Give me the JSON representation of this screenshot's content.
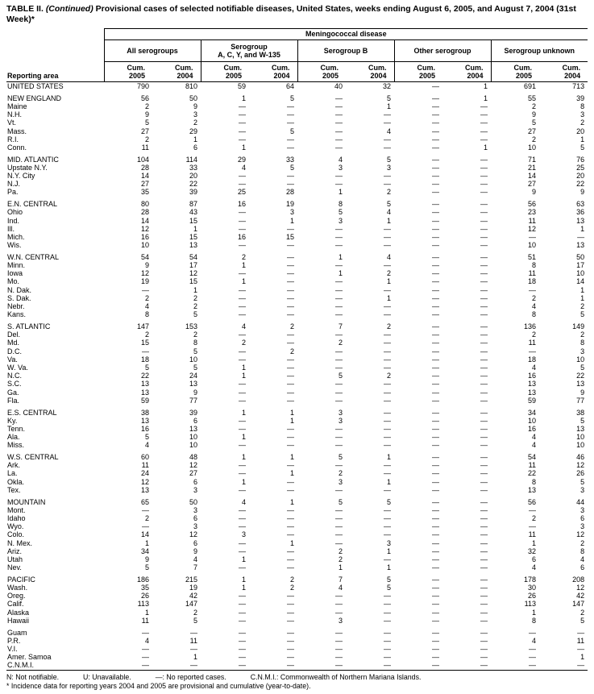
{
  "page": {
    "title_prefix": "TABLE II.",
    "title_continued": "(Continued)",
    "title_rest": "Provisional cases of selected notifiable diseases, United States, weeks ending August 6, 2005, and August 7, 2004 (31st Week)*"
  },
  "table": {
    "disease_header": "Meningococcal disease",
    "reporting_area_header": "Reporting area",
    "group_headers": [
      [
        "All serogroups"
      ],
      [
        "Serogroup",
        "A, C, Y, and W-135"
      ],
      [
        "Serogroup B"
      ],
      [
        "Other serogroup"
      ],
      [
        "Serogroup unknown"
      ]
    ],
    "cum_label": "Cum.",
    "years": [
      "2005",
      "2004"
    ],
    "body_groups": [
      {
        "rows": [
          [
            "UNITED STATES",
            "790",
            "810",
            "59",
            "64",
            "40",
            "32",
            "—",
            "1",
            "691",
            "713"
          ]
        ]
      },
      {
        "rows": [
          [
            "NEW ENGLAND",
            "56",
            "50",
            "1",
            "5",
            "—",
            "5",
            "—",
            "1",
            "55",
            "39"
          ],
          [
            "Maine",
            "2",
            "9",
            "—",
            "—",
            "—",
            "1",
            "—",
            "—",
            "2",
            "8"
          ],
          [
            "N.H.",
            "9",
            "3",
            "—",
            "—",
            "—",
            "—",
            "—",
            "—",
            "9",
            "3"
          ],
          [
            "Vt.",
            "5",
            "2",
            "—",
            "—",
            "—",
            "—",
            "—",
            "—",
            "5",
            "2"
          ],
          [
            "Mass.",
            "27",
            "29",
            "—",
            "5",
            "—",
            "4",
            "—",
            "—",
            "27",
            "20"
          ],
          [
            "R.I.",
            "2",
            "1",
            "—",
            "—",
            "—",
            "—",
            "—",
            "—",
            "2",
            "1"
          ],
          [
            "Conn.",
            "11",
            "6",
            "1",
            "—",
            "—",
            "—",
            "—",
            "1",
            "10",
            "5"
          ]
        ]
      },
      {
        "rows": [
          [
            "MID. ATLANTIC",
            "104",
            "114",
            "29",
            "33",
            "4",
            "5",
            "—",
            "—",
            "71",
            "76"
          ],
          [
            "Upstate N.Y.",
            "28",
            "33",
            "4",
            "5",
            "3",
            "3",
            "—",
            "—",
            "21",
            "25"
          ],
          [
            "N.Y. City",
            "14",
            "20",
            "—",
            "—",
            "—",
            "—",
            "—",
            "—",
            "14",
            "20"
          ],
          [
            "N.J.",
            "27",
            "22",
            "—",
            "—",
            "—",
            "—",
            "—",
            "—",
            "27",
            "22"
          ],
          [
            "Pa.",
            "35",
            "39",
            "25",
            "28",
            "1",
            "2",
            "—",
            "—",
            "9",
            "9"
          ]
        ]
      },
      {
        "rows": [
          [
            "E.N. CENTRAL",
            "80",
            "87",
            "16",
            "19",
            "8",
            "5",
            "—",
            "—",
            "56",
            "63"
          ],
          [
            "Ohio",
            "28",
            "43",
            "—",
            "3",
            "5",
            "4",
            "—",
            "—",
            "23",
            "36"
          ],
          [
            "Ind.",
            "14",
            "15",
            "—",
            "1",
            "3",
            "1",
            "—",
            "—",
            "11",
            "13"
          ],
          [
            "Ill.",
            "12",
            "1",
            "—",
            "—",
            "—",
            "—",
            "—",
            "—",
            "12",
            "1"
          ],
          [
            "Mich.",
            "16",
            "15",
            "16",
            "15",
            "—",
            "—",
            "—",
            "—",
            "—",
            "—"
          ],
          [
            "Wis.",
            "10",
            "13",
            "—",
            "—",
            "—",
            "—",
            "—",
            "—",
            "10",
            "13"
          ]
        ]
      },
      {
        "rows": [
          [
            "W.N. CENTRAL",
            "54",
            "54",
            "2",
            "—",
            "1",
            "4",
            "—",
            "—",
            "51",
            "50"
          ],
          [
            "Minn.",
            "9",
            "17",
            "1",
            "—",
            "—",
            "—",
            "—",
            "—",
            "8",
            "17"
          ],
          [
            "Iowa",
            "12",
            "12",
            "—",
            "—",
            "1",
            "2",
            "—",
            "—",
            "11",
            "10"
          ],
          [
            "Mo.",
            "19",
            "15",
            "1",
            "—",
            "—",
            "1",
            "—",
            "—",
            "18",
            "14"
          ],
          [
            "N. Dak.",
            "—",
            "1",
            "—",
            "—",
            "—",
            "—",
            "—",
            "—",
            "—",
            "1"
          ],
          [
            "S. Dak.",
            "2",
            "2",
            "—",
            "—",
            "—",
            "1",
            "—",
            "—",
            "2",
            "1"
          ],
          [
            "Nebr.",
            "4",
            "2",
            "—",
            "—",
            "—",
            "—",
            "—",
            "—",
            "4",
            "2"
          ],
          [
            "Kans.",
            "8",
            "5",
            "—",
            "—",
            "—",
            "—",
            "—",
            "—",
            "8",
            "5"
          ]
        ]
      },
      {
        "rows": [
          [
            "S. ATLANTIC",
            "147",
            "153",
            "4",
            "2",
            "7",
            "2",
            "—",
            "—",
            "136",
            "149"
          ],
          [
            "Del.",
            "2",
            "2",
            "—",
            "—",
            "—",
            "—",
            "—",
            "—",
            "2",
            "2"
          ],
          [
            "Md.",
            "15",
            "8",
            "2",
            "—",
            "2",
            "—",
            "—",
            "—",
            "11",
            "8"
          ],
          [
            "D.C.",
            "—",
            "5",
            "—",
            "2",
            "—",
            "—",
            "—",
            "—",
            "—",
            "3"
          ],
          [
            "Va.",
            "18",
            "10",
            "—",
            "—",
            "—",
            "—",
            "—",
            "—",
            "18",
            "10"
          ],
          [
            "W. Va.",
            "5",
            "5",
            "1",
            "—",
            "—",
            "—",
            "—",
            "—",
            "4",
            "5"
          ],
          [
            "N.C.",
            "22",
            "24",
            "1",
            "—",
            "5",
            "2",
            "—",
            "—",
            "16",
            "22"
          ],
          [
            "S.C.",
            "13",
            "13",
            "—",
            "—",
            "—",
            "—",
            "—",
            "—",
            "13",
            "13"
          ],
          [
            "Ga.",
            "13",
            "9",
            "—",
            "—",
            "—",
            "—",
            "—",
            "—",
            "13",
            "9"
          ],
          [
            "Fla.",
            "59",
            "77",
            "—",
            "—",
            "—",
            "—",
            "—",
            "—",
            "59",
            "77"
          ]
        ]
      },
      {
        "rows": [
          [
            "E.S. CENTRAL",
            "38",
            "39",
            "1",
            "1",
            "3",
            "—",
            "—",
            "—",
            "34",
            "38"
          ],
          [
            "Ky.",
            "13",
            "6",
            "—",
            "1",
            "3",
            "—",
            "—",
            "—",
            "10",
            "5"
          ],
          [
            "Tenn.",
            "16",
            "13",
            "—",
            "—",
            "—",
            "—",
            "—",
            "—",
            "16",
            "13"
          ],
          [
            "Ala.",
            "5",
            "10",
            "1",
            "—",
            "—",
            "—",
            "—",
            "—",
            "4",
            "10"
          ],
          [
            "Miss.",
            "4",
            "10",
            "—",
            "—",
            "—",
            "—",
            "—",
            "—",
            "4",
            "10"
          ]
        ]
      },
      {
        "rows": [
          [
            "W.S. CENTRAL",
            "60",
            "48",
            "1",
            "1",
            "5",
            "1",
            "—",
            "—",
            "54",
            "46"
          ],
          [
            "Ark.",
            "11",
            "12",
            "—",
            "—",
            "—",
            "—",
            "—",
            "—",
            "11",
            "12"
          ],
          [
            "La.",
            "24",
            "27",
            "—",
            "1",
            "2",
            "—",
            "—",
            "—",
            "22",
            "26"
          ],
          [
            "Okla.",
            "12",
            "6",
            "1",
            "—",
            "3",
            "1",
            "—",
            "—",
            "8",
            "5"
          ],
          [
            "Tex.",
            "13",
            "3",
            "—",
            "—",
            "—",
            "—",
            "—",
            "—",
            "13",
            "3"
          ]
        ]
      },
      {
        "rows": [
          [
            "MOUNTAIN",
            "65",
            "50",
            "4",
            "1",
            "5",
            "5",
            "—",
            "—",
            "56",
            "44"
          ],
          [
            "Mont.",
            "—",
            "3",
            "—",
            "—",
            "—",
            "—",
            "—",
            "—",
            "—",
            "3"
          ],
          [
            "Idaho",
            "2",
            "6",
            "—",
            "—",
            "—",
            "—",
            "—",
            "—",
            "2",
            "6"
          ],
          [
            "Wyo.",
            "—",
            "3",
            "—",
            "—",
            "—",
            "—",
            "—",
            "—",
            "—",
            "3"
          ],
          [
            "Colo.",
            "14",
            "12",
            "3",
            "—",
            "—",
            "—",
            "—",
            "—",
            "11",
            "12"
          ],
          [
            "N. Mex.",
            "1",
            "6",
            "—",
            "1",
            "—",
            "3",
            "—",
            "—",
            "1",
            "2"
          ],
          [
            "Ariz.",
            "34",
            "9",
            "—",
            "—",
            "2",
            "1",
            "—",
            "—",
            "32",
            "8"
          ],
          [
            "Utah",
            "9",
            "4",
            "1",
            "—",
            "2",
            "—",
            "—",
            "—",
            "6",
            "4"
          ],
          [
            "Nev.",
            "5",
            "7",
            "—",
            "—",
            "1",
            "1",
            "—",
            "—",
            "4",
            "6"
          ]
        ]
      },
      {
        "rows": [
          [
            "PACIFIC",
            "186",
            "215",
            "1",
            "2",
            "7",
            "5",
            "—",
            "—",
            "178",
            "208"
          ],
          [
            "Wash.",
            "35",
            "19",
            "1",
            "2",
            "4",
            "5",
            "—",
            "—",
            "30",
            "12"
          ],
          [
            "Oreg.",
            "26",
            "42",
            "—",
            "—",
            "—",
            "—",
            "—",
            "—",
            "26",
            "42"
          ],
          [
            "Calif.",
            "113",
            "147",
            "—",
            "—",
            "—",
            "—",
            "—",
            "—",
            "113",
            "147"
          ],
          [
            "Alaska",
            "1",
            "2",
            "—",
            "—",
            "—",
            "—",
            "—",
            "—",
            "1",
            "2"
          ],
          [
            "Hawaii",
            "11",
            "5",
            "—",
            "—",
            "3",
            "—",
            "—",
            "—",
            "8",
            "5"
          ]
        ]
      },
      {
        "rows": [
          [
            "Guam",
            "—",
            "—",
            "—",
            "—",
            "—",
            "—",
            "—",
            "—",
            "—",
            "—"
          ],
          [
            "P.R.",
            "4",
            "11",
            "—",
            "—",
            "—",
            "—",
            "—",
            "—",
            "4",
            "11"
          ],
          [
            "V.I.",
            "—",
            "—",
            "—",
            "—",
            "—",
            "—",
            "—",
            "—",
            "—",
            "—"
          ],
          [
            "Amer. Samoa",
            "—",
            "1",
            "—",
            "—",
            "—",
            "—",
            "—",
            "—",
            "—",
            "1"
          ],
          [
            "C.N.M.I.",
            "—",
            "—",
            "—",
            "—",
            "—",
            "—",
            "—",
            "—",
            "—",
            "—"
          ]
        ]
      }
    ]
  },
  "footnotes": {
    "defs": [
      "N: Not notifiable.",
      "U: Unavailable.",
      "—: No reported cases.",
      "C.N.M.I.: Commonwealth of Northern Mariana Islands."
    ],
    "star": "* Incidence data for reporting years 2004 and 2005 are provisional and cumulative (year-to-date)."
  }
}
